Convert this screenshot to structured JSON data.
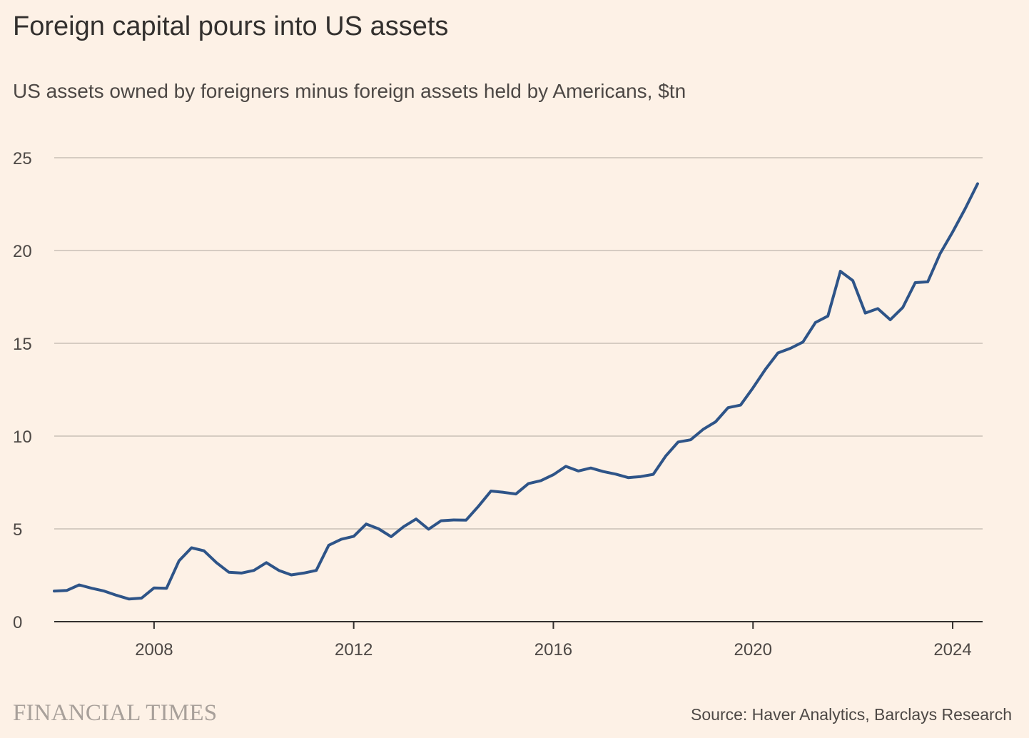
{
  "header": {
    "title": "Foreign capital pours into US assets",
    "subtitle": "US assets owned by foreigners minus foreign assets held by Americans, $tn"
  },
  "footer": {
    "brand": "FINANCIAL TIMES",
    "source": "Source: Haver Analytics, Barclays Research"
  },
  "colors": {
    "background": "#fdf1e6",
    "line": "#2e5488",
    "grid": "#c9bfb5",
    "axis": "#33302e",
    "text": "#4d4845"
  },
  "chart_data": {
    "type": "line",
    "title": "Foreign capital pours into US assets",
    "subtitle": "US assets owned by foreigners minus foreign assets held by Americans, $tn",
    "xlabel": "",
    "ylabel": "",
    "xlim": [
      2006.0,
      2024.6
    ],
    "ylim": [
      0,
      25
    ],
    "x_ticks": [
      2008,
      2012,
      2016,
      2020,
      2024
    ],
    "x_tick_labels": [
      "2008",
      "2012",
      "2016",
      "2020",
      "2024"
    ],
    "y_ticks": [
      0,
      5,
      10,
      15,
      20,
      25
    ],
    "y_tick_labels": [
      "0",
      "5",
      "10",
      "15",
      "20",
      "25"
    ],
    "grid": "horizontal",
    "legend": "none",
    "series": [
      {
        "x": [
          2006.0,
          2006.25,
          2006.5,
          2006.75,
          2007.0,
          2007.25,
          2007.5,
          2007.75,
          2008.0,
          2008.25,
          2008.5,
          2008.75,
          2009.0,
          2009.25,
          2009.5,
          2009.75,
          2010.0,
          2010.25,
          2010.5,
          2010.75,
          2011.0,
          2011.25,
          2011.5,
          2011.75,
          2012.0,
          2012.25,
          2012.5,
          2012.75,
          2013.0,
          2013.25,
          2013.5,
          2013.75,
          2014.0,
          2014.25,
          2014.5,
          2014.75,
          2015.0,
          2015.25,
          2015.5,
          2015.75,
          2016.0,
          2016.25,
          2016.5,
          2016.75,
          2017.0,
          2017.25,
          2017.5,
          2017.75,
          2018.0,
          2018.25,
          2018.5,
          2018.75,
          2019.0,
          2019.25,
          2019.5,
          2019.75,
          2020.0,
          2020.25,
          2020.5,
          2020.75,
          2021.0,
          2021.25,
          2021.5,
          2021.75,
          2022.0,
          2022.25,
          2022.5,
          2022.75,
          2023.0,
          2023.25,
          2023.5,
          2023.75,
          2024.0,
          2024.25,
          2024.5
        ],
        "values": [
          1.65,
          1.68,
          1.98,
          1.8,
          1.65,
          1.42,
          1.22,
          1.27,
          1.82,
          1.8,
          3.28,
          3.98,
          3.82,
          3.18,
          2.66,
          2.62,
          2.76,
          3.18,
          2.76,
          2.52,
          2.62,
          2.76,
          4.12,
          4.44,
          4.6,
          5.26,
          5.0,
          4.58,
          5.12,
          5.53,
          4.98,
          5.44,
          5.48,
          5.47,
          6.22,
          7.04,
          6.97,
          6.88,
          7.44,
          7.6,
          7.92,
          8.37,
          8.12,
          8.28,
          8.09,
          7.95,
          7.76,
          7.82,
          7.94,
          8.92,
          9.68,
          9.8,
          10.36,
          10.77,
          11.53,
          11.67,
          12.6,
          13.6,
          14.48,
          14.73,
          15.07,
          16.12,
          16.47,
          18.88,
          18.38,
          16.63,
          16.87,
          16.27,
          16.93,
          18.27,
          18.31,
          19.84,
          21.0,
          22.25,
          23.6
        ]
      }
    ]
  }
}
